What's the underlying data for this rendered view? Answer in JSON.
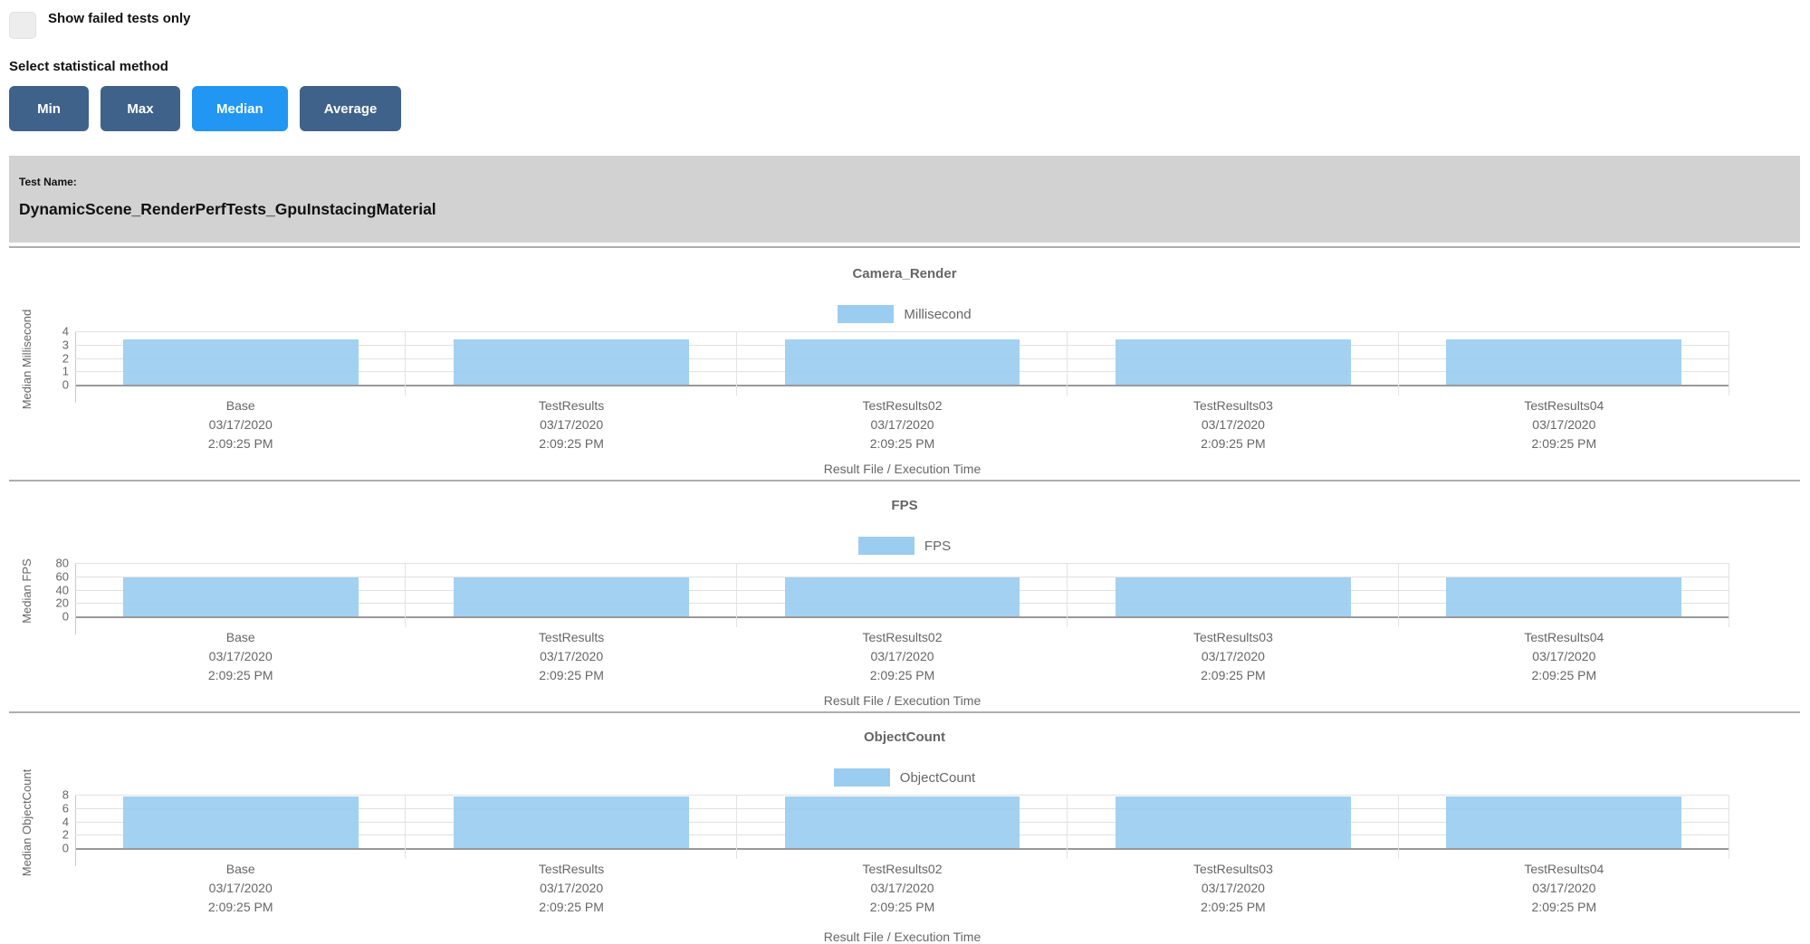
{
  "controls": {
    "show_failed_label": "Show failed tests only",
    "show_failed_checked": false,
    "stat_method_label": "Select statistical method",
    "stat_buttons": [
      {
        "label": "Min",
        "active": false
      },
      {
        "label": "Max",
        "active": false
      },
      {
        "label": "Median",
        "active": true
      },
      {
        "label": "Average",
        "active": false
      }
    ]
  },
  "test_banner": {
    "label": "Test Name:",
    "name": "DynamicScene_RenderPerfTests_GpuInstacingMaterial"
  },
  "colors": {
    "button": "#3f628a",
    "button_active": "#2196f3",
    "bar": "#9bcdf1",
    "banner_bg": "#d2d2d2"
  },
  "chart_data": [
    {
      "type": "bar",
      "title": "Camera_Render",
      "legend": "Millisecond",
      "ylabel": "Median Millisecond",
      "xlabel": "Result File / Execution Time",
      "ylim": [
        0,
        4
      ],
      "yticks": [
        0,
        1,
        2,
        3,
        4
      ],
      "grid": true,
      "legend_position": "top",
      "categories": [
        [
          "Base",
          "03/17/2020",
          "2:09:25 PM"
        ],
        [
          "TestResults",
          "03/17/2020",
          "2:09:25 PM"
        ],
        [
          "TestResults02",
          "03/17/2020",
          "2:09:25 PM"
        ],
        [
          "TestResults03",
          "03/17/2020",
          "2:09:25 PM"
        ],
        [
          "TestResults04",
          "03/17/2020",
          "2:09:25 PM"
        ]
      ],
      "values": [
        3.4,
        3.4,
        3.4,
        3.4,
        3.4
      ]
    },
    {
      "type": "bar",
      "title": "FPS",
      "legend": "FPS",
      "ylabel": "Median FPS",
      "xlabel": "Result File / Execution Time",
      "ylim": [
        0,
        80
      ],
      "yticks": [
        0,
        20,
        40,
        60,
        80
      ],
      "grid": true,
      "legend_position": "top",
      "categories": [
        [
          "Base",
          "03/17/2020",
          "2:09:25 PM"
        ],
        [
          "TestResults",
          "03/17/2020",
          "2:09:25 PM"
        ],
        [
          "TestResults02",
          "03/17/2020",
          "2:09:25 PM"
        ],
        [
          "TestResults03",
          "03/17/2020",
          "2:09:25 PM"
        ],
        [
          "TestResults04",
          "03/17/2020",
          "2:09:25 PM"
        ]
      ],
      "values": [
        58,
        58,
        58,
        58,
        58
      ]
    },
    {
      "type": "bar",
      "title": "ObjectCount",
      "legend": "ObjectCount",
      "ylabel": "Median ObjectCount",
      "xlabel": "Result File / Execution Time",
      "ylim": [
        0,
        8
      ],
      "yticks": [
        0,
        2,
        4,
        6,
        8
      ],
      "grid": true,
      "legend_position": "top",
      "categories": [
        [
          "Base",
          "03/17/2020",
          "2:09:25 PM"
        ],
        [
          "TestResults",
          "03/17/2020",
          "2:09:25 PM"
        ],
        [
          "TestResults02",
          "03/17/2020",
          "2:09:25 PM"
        ],
        [
          "TestResults03",
          "03/17/2020",
          "2:09:25 PM"
        ],
        [
          "TestResults04",
          "03/17/2020",
          "2:09:25 PM"
        ]
      ],
      "values": [
        7.7,
        7.7,
        7.7,
        7.7,
        7.7
      ]
    }
  ]
}
